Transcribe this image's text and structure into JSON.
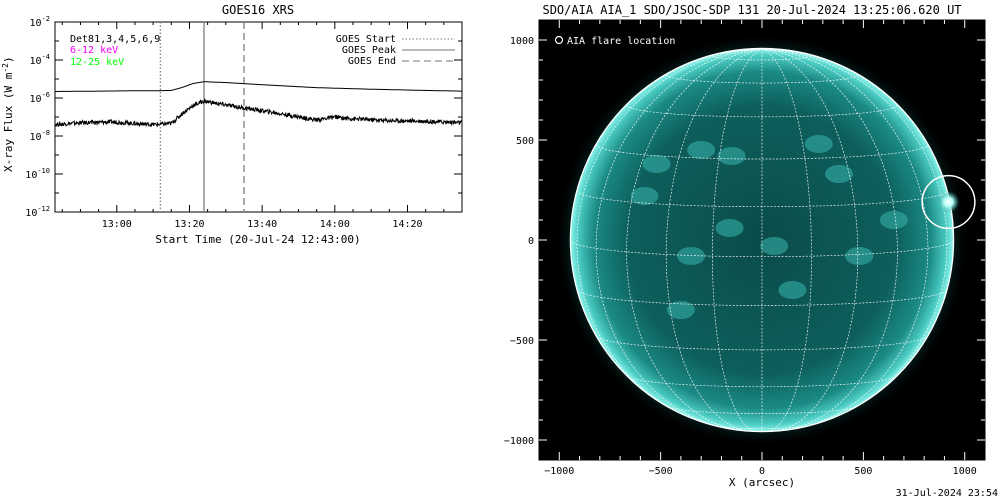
{
  "left_plot": {
    "title": "GOES16 XRS",
    "xlabel": "Start Time (20-Jul-24 12:43:00)",
    "ylabel": "X-ray Flux (W m",
    "ylabel_sup": "-2",
    "ylabel_close": ")",
    "detector_label": "Det81,3,4,5,6,9",
    "band_labels": [
      {
        "text": "6-12 keV",
        "color": "#ff00ff"
      },
      {
        "text": "12-25 keV",
        "color": "#00ff00"
      }
    ],
    "legend": [
      {
        "label": "GOES Start",
        "style": "dotted"
      },
      {
        "label": "GOES Peak",
        "style": "solid"
      },
      {
        "label": "GOES End",
        "style": "dashed"
      }
    ],
    "y_ticks": [
      {
        "base": "10",
        "exp": "-2",
        "log": -2
      },
      {
        "base": "10",
        "exp": "-4",
        "log": -4
      },
      {
        "base": "10",
        "exp": "-6",
        "log": -6
      },
      {
        "base": "10",
        "exp": "-8",
        "log": -8
      },
      {
        "base": "10",
        "exp": "-10",
        "log": -10
      },
      {
        "base": "10",
        "exp": "-12",
        "log": -12
      }
    ],
    "x_ticks": [
      {
        "label": "13:00",
        "minutes": 17
      },
      {
        "label": "13:20",
        "minutes": 37
      },
      {
        "label": "13:40",
        "minutes": 57
      },
      {
        "label": "14:00",
        "minutes": 77
      },
      {
        "label": "14:20",
        "minutes": 97
      }
    ]
  },
  "chart_data": [
    {
      "type": "line",
      "title": "GOES16 XRS",
      "xlabel": "Start Time (20-Jul-24 12:43:00)",
      "ylabel": "X-ray Flux (W m^-2)",
      "y_scale": "log",
      "ylim": [
        1e-12,
        0.01
      ],
      "xlim": [
        "12:43",
        "14:35"
      ],
      "grid": false,
      "legend_position": "top-right",
      "markers": {
        "GOES Start": "13:12",
        "GOES Peak": "13:24",
        "GOES End": "13:35"
      },
      "series": [
        {
          "color": "#000000",
          "x": [
            "12:43",
            "12:55",
            "13:05",
            "13:10",
            "13:15",
            "13:18",
            "13:21",
            "13:24",
            "13:30",
            "13:40",
            "13:55",
            "14:10",
            "14:25",
            "14:35"
          ],
          "values": [
            2.2e-06,
            2.3e-06,
            2.4e-06,
            2.4e-06,
            2.5e-06,
            3.6e-06,
            5.8e-06,
            7.2e-06,
            6.5e-06,
            5e-06,
            3.5e-06,
            2.9e-06,
            2.5e-06,
            2.3e-06
          ]
        },
        {
          "color": "#000000",
          "x": [
            "12:43",
            "12:50",
            "13:00",
            "13:05",
            "13:10",
            "13:15",
            "13:18",
            "13:21",
            "13:24",
            "13:28",
            "13:35",
            "13:45",
            "13:55",
            "14:00",
            "14:05",
            "14:15",
            "14:25",
            "14:35"
          ],
          "values": [
            4e-08,
            5e-08,
            5.5e-08,
            4.5e-08,
            4e-08,
            4.5e-08,
            1.5e-07,
            4e-07,
            7e-07,
            5e-07,
            3e-07,
            1.5e-07,
            7e-08,
            1e-07,
            8e-08,
            6.5e-08,
            6e-08,
            5e-08
          ]
        }
      ]
    },
    {
      "type": "heatmap",
      "title": "SDO/AIA AIA_1 SDO/JSOC-SDP 131 20-Jul-2024 13:25:06.620 UT",
      "xlabel": "X (arcsec)",
      "ylabel": "",
      "xlim": [
        -1100,
        1100
      ],
      "ylim": [
        -1100,
        1100
      ],
      "solar_radius_arcsec": 945,
      "legend_position": "top-left",
      "flare_location": {
        "x": 920,
        "y": 190,
        "radius": 130
      },
      "x_ticks": [
        -1000,
        -500,
        0,
        500,
        1000
      ],
      "y_ticks": [
        1000,
        500,
        0,
        -500,
        -1000
      ],
      "grid_spacing_deg": 15,
      "colors": {
        "disk": "#0d5f5c",
        "limb": "#7ef0e8",
        "grid": "#ffffff"
      }
    }
  ],
  "right_plot": {
    "title": "SDO/AIA AIA_1 SDO/JSOC-SDP 131 20-Jul-2024 13:25:06.620 UT",
    "legend": "AIA flare location",
    "xlabel": "X (arcsec)",
    "x_tick_labels": [
      "−1000",
      "−500",
      "0",
      "500",
      "1000"
    ],
    "y_tick_labels": [
      "1000",
      "500",
      "0",
      "−500",
      "−1000"
    ]
  },
  "footer": {
    "timestamp": "31-Jul-2024 23:54"
  }
}
